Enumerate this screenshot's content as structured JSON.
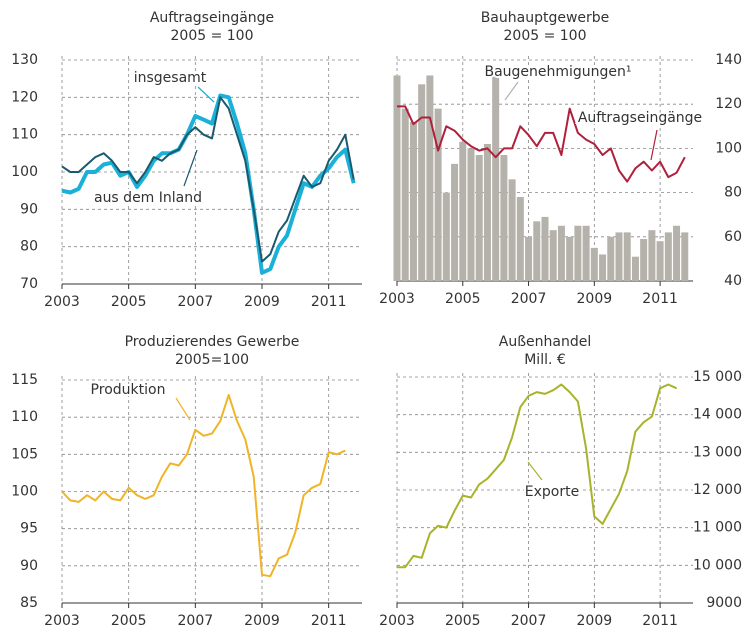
{
  "chart_data": [
    {
      "type": "line",
      "title": "Auftragseingänge",
      "subtitle": "2005 = 100",
      "x": [
        2003,
        2003.25,
        2003.5,
        2003.75,
        2004,
        2004.25,
        2004.5,
        2004.75,
        2005,
        2005.25,
        2005.5,
        2005.75,
        2006,
        2006.25,
        2006.5,
        2006.75,
        2007,
        2007.25,
        2007.5,
        2007.75,
        2008,
        2008.25,
        2008.5,
        2008.75,
        2009,
        2009.25,
        2009.5,
        2009.75,
        2010,
        2010.25,
        2010.5,
        2010.75,
        2011,
        2011.25,
        2011.5,
        2011.75
      ],
      "series": [
        {
          "name": "insgesamt",
          "color": "#1ab0d8",
          "width": 4,
          "values": [
            95,
            94.5,
            95.5,
            100,
            100,
            102,
            102.5,
            99,
            100,
            96,
            99,
            103,
            105,
            105,
            106,
            110,
            115,
            114,
            113,
            120.5,
            120,
            113,
            105,
            90,
            73,
            74,
            80,
            83,
            90,
            97,
            96,
            99,
            101,
            104,
            106,
            97
          ]
        },
        {
          "name": "aus dem Inland",
          "color": "#1a5a6e",
          "width": 2,
          "values": [
            101.5,
            100,
            100,
            102,
            104,
            105,
            103,
            100,
            100,
            97,
            100,
            104,
            103,
            105,
            106,
            110,
            112,
            110,
            109,
            120,
            117,
            110,
            103,
            90,
            76,
            78,
            84,
            87,
            93,
            99,
            96,
            97,
            103,
            106,
            110,
            98
          ]
        }
      ],
      "xlim": [
        2003,
        2012
      ],
      "xticks": [
        2003,
        2005,
        2007,
        2009,
        2011
      ],
      "ylim": [
        70,
        130
      ],
      "yticks": [
        70,
        80,
        90,
        100,
        110,
        120,
        130
      ],
      "grid": true
    },
    {
      "type": "combo",
      "title": "Bauhauptgewerbe",
      "subtitle": "2005 = 100",
      "x": [
        2003,
        2003.25,
        2003.5,
        2003.75,
        2004,
        2004.25,
        2004.5,
        2004.75,
        2005,
        2005.25,
        2005.5,
        2005.75,
        2006,
        2006.25,
        2006.5,
        2006.75,
        2007,
        2007.25,
        2007.5,
        2007.75,
        2008,
        2008.25,
        2008.5,
        2008.75,
        2009,
        2009.25,
        2009.5,
        2009.75,
        2010,
        2010.25,
        2010.5,
        2010.75,
        2011,
        2011.25,
        2011.5,
        2011.75
      ],
      "series": [
        {
          "name": "Baugenehmigungen¹",
          "kind": "bar",
          "axis": "y2",
          "color": "#b5b2ab",
          "values": [
            133,
            118,
            112,
            129,
            133,
            118,
            80,
            93,
            103,
            100,
            97,
            102,
            133,
            97,
            86,
            78,
            60,
            67,
            69,
            63,
            65,
            60,
            65,
            65,
            55,
            52,
            60,
            62,
            62,
            51,
            59,
            63,
            58,
            62,
            65,
            62
          ]
        },
        {
          "name": "Auftragseingänge",
          "kind": "line",
          "axis": "y2",
          "color": "#b0203c",
          "width": 2,
          "values": [
            119,
            119,
            111,
            114,
            114,
            99,
            110,
            108,
            104,
            101,
            99,
            100,
            96,
            100,
            100,
            110,
            106,
            101,
            107,
            107,
            97,
            118,
            107,
            104,
            102,
            97,
            100,
            90,
            85,
            91,
            94,
            90,
            94,
            87,
            89,
            96
          ]
        }
      ],
      "xlim": [
        2003,
        2012
      ],
      "xticks": [
        2003,
        2005,
        2007,
        2009,
        2011
      ],
      "y2lim": [
        40,
        140
      ],
      "y2ticks": [
        40,
        60,
        80,
        100,
        120,
        140
      ],
      "grid": true
    },
    {
      "type": "line",
      "title": "Produzierendes Gewerbe",
      "subtitle": "2005=100",
      "x": [
        2003,
        2003.25,
        2003.5,
        2003.75,
        2004,
        2004.25,
        2004.5,
        2004.75,
        2005,
        2005.25,
        2005.5,
        2005.75,
        2006,
        2006.25,
        2006.5,
        2006.75,
        2007,
        2007.25,
        2007.5,
        2007.75,
        2008,
        2008.25,
        2008.5,
        2008.75,
        2009,
        2009.25,
        2009.5,
        2009.75,
        2010,
        2010.25,
        2010.5,
        2010.75,
        2011,
        2011.25,
        2011.5
      ],
      "series": [
        {
          "name": "Produktion",
          "color": "#f0b428",
          "width": 2,
          "values": [
            100,
            98.8,
            98.6,
            99.5,
            98.8,
            100,
            99,
            98.8,
            100.5,
            99.5,
            99,
            99.5,
            102,
            103.8,
            103.5,
            105,
            108.3,
            107.5,
            107.8,
            109.5,
            113,
            109.5,
            107,
            102,
            88.8,
            88.6,
            91,
            91.5,
            94.5,
            99.5,
            100.5,
            101,
            105.3,
            105,
            105.5
          ]
        }
      ],
      "xlim": [
        2003,
        2012
      ],
      "xticks": [
        2003,
        2005,
        2007,
        2009,
        2011
      ],
      "ylim": [
        85,
        115
      ],
      "yticks": [
        85,
        90,
        95,
        100,
        105,
        110,
        115
      ],
      "grid": true
    },
    {
      "type": "line",
      "title": "Außenhandel",
      "subtitle": "Mill. €",
      "x": [
        2003,
        2003.25,
        2003.5,
        2003.75,
        2004,
        2004.25,
        2004.5,
        2004.75,
        2005,
        2005.25,
        2005.5,
        2005.75,
        2006,
        2006.25,
        2006.5,
        2006.75,
        2007,
        2007.25,
        2007.5,
        2007.75,
        2008,
        2008.25,
        2008.5,
        2008.75,
        2009,
        2009.25,
        2009.5,
        2009.75,
        2010,
        2010.25,
        2010.5,
        2010.75,
        2011,
        2011.25,
        2011.5
      ],
      "series": [
        {
          "name": "Exporte",
          "axis": "y2",
          "color": "#a8b32a",
          "width": 2,
          "values": [
            9950,
            9950,
            10250,
            10200,
            10850,
            11050,
            11000,
            11450,
            11850,
            11800,
            12150,
            12300,
            12550,
            12800,
            13400,
            14200,
            14500,
            14600,
            14550,
            14650,
            14800,
            14600,
            14350,
            13100,
            11300,
            11100,
            11500,
            11900,
            12500,
            13550,
            13800,
            13950,
            14700,
            14800,
            14700
          ]
        }
      ],
      "xlim": [
        2003,
        2012
      ],
      "xticks": [
        2003,
        2005,
        2007,
        2009,
        2011
      ],
      "y2lim": [
        9000,
        15000
      ],
      "y2ticks": [
        9000,
        {
          "value": 10000,
          "label": "10 000"
        },
        {
          "value": 11000,
          "label": "11 000"
        },
        {
          "value": 12000,
          "label": "12 000"
        },
        {
          "value": 13000,
          "label": "13 000"
        },
        {
          "value": 14000,
          "label": "14 000"
        },
        {
          "value": 15000,
          "label": "15 000"
        }
      ],
      "grid": true
    }
  ]
}
